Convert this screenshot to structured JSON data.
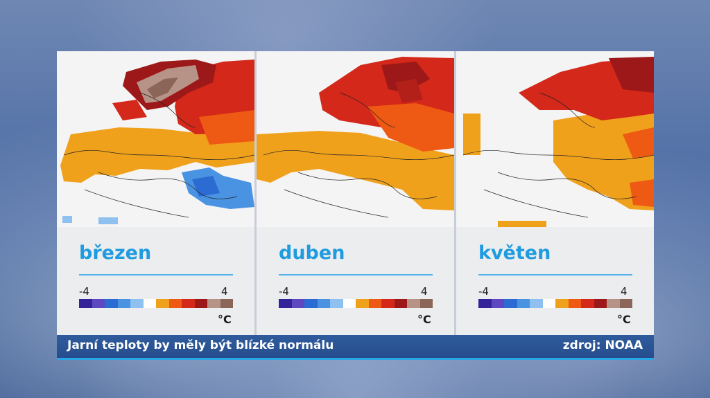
{
  "caption": "Jarní teploty by měly být blízké normálu",
  "source": "zdroj: NOAA",
  "scale": {
    "min": "-4",
    "max": "4",
    "unit": "°C"
  },
  "legend_colors": [
    "#33239b",
    "#5d48c2",
    "#2b6bd2",
    "#4a93e2",
    "#8ec1ef",
    "#ffffff",
    "#f0a11c",
    "#ee5a14",
    "#d3281a",
    "#9d1818",
    "#b79287",
    "#8b6558"
  ],
  "months": [
    {
      "label": "březen",
      "map": "anomaly-map-march"
    },
    {
      "label": "duben",
      "map": "anomaly-map-april"
    },
    {
      "label": "květen",
      "map": "anomaly-map-may"
    }
  ]
}
